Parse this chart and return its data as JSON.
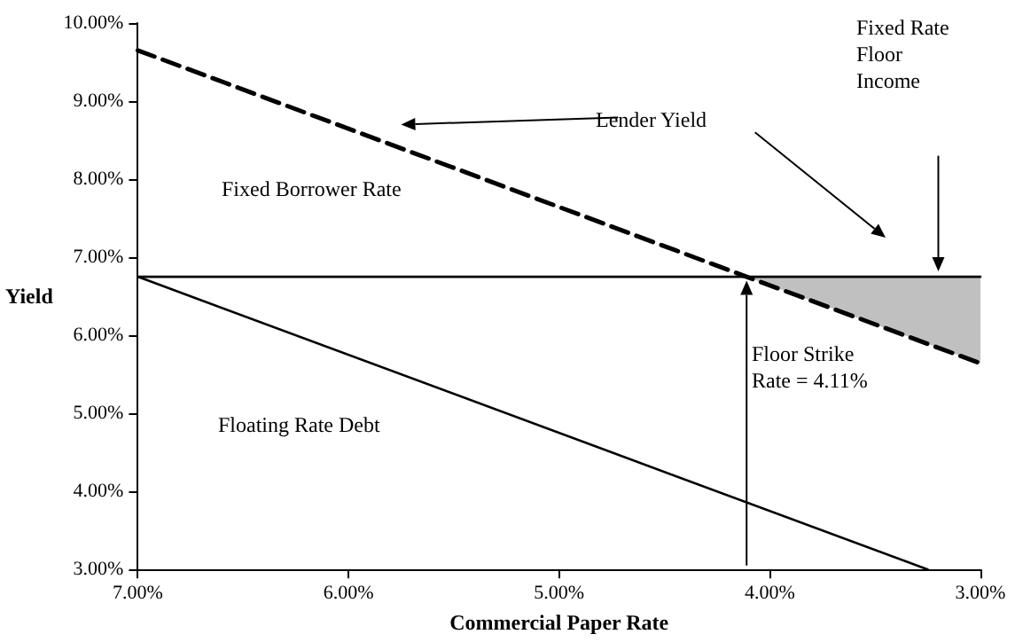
{
  "chart_data": {
    "type": "line",
    "xlabel": "Commercial Paper Rate",
    "ylabel": "Yield",
    "xlim": [
      7,
      3
    ],
    "ylim": [
      3,
      10
    ],
    "xticks": [
      {
        "value": 7,
        "label": "7.00%"
      },
      {
        "value": 6,
        "label": "6.00%"
      },
      {
        "value": 5,
        "label": "5.00%"
      },
      {
        "value": 4,
        "label": "4.00%"
      },
      {
        "value": 3,
        "label": "3.00%"
      }
    ],
    "yticks": [
      {
        "value": 3,
        "label": "3.00%"
      },
      {
        "value": 4,
        "label": "4.00%"
      },
      {
        "value": 5,
        "label": "5.00%"
      },
      {
        "value": 6,
        "label": "6.00%"
      },
      {
        "value": 7,
        "label": "7.00%"
      },
      {
        "value": 8,
        "label": "8.00%"
      },
      {
        "value": 9,
        "label": "9.00%"
      },
      {
        "value": 10,
        "label": "10.00%"
      }
    ],
    "grid": false,
    "marker": "none",
    "series": [
      {
        "color": "#000000",
        "x": [
          7,
          4.11,
          3
        ],
        "values": [
          9.65,
          6.75,
          5.64
        ],
        "lower": [
          null,
          6.75,
          5.64
        ],
        "upper": [
          null,
          6.75,
          6.75
        ],
        "line_style": "dashed"
      },
      {
        "color": "#000000",
        "x": [
          7,
          3
        ],
        "values": [
          6.75,
          6.75
        ],
        "line_style": "solid"
      },
      {
        "color": "#000000",
        "x": [
          7,
          3.25
        ],
        "values": [
          6.75,
          3.0
        ],
        "line_style": "solid"
      }
    ],
    "annotations": [
      "Lender Yield",
      "Fixed Borrower Rate",
      "Floating Rate Debt",
      "Fixed Rate\nFloor\nIncome",
      "Floor Strike\nRate = 4.11%"
    ]
  }
}
